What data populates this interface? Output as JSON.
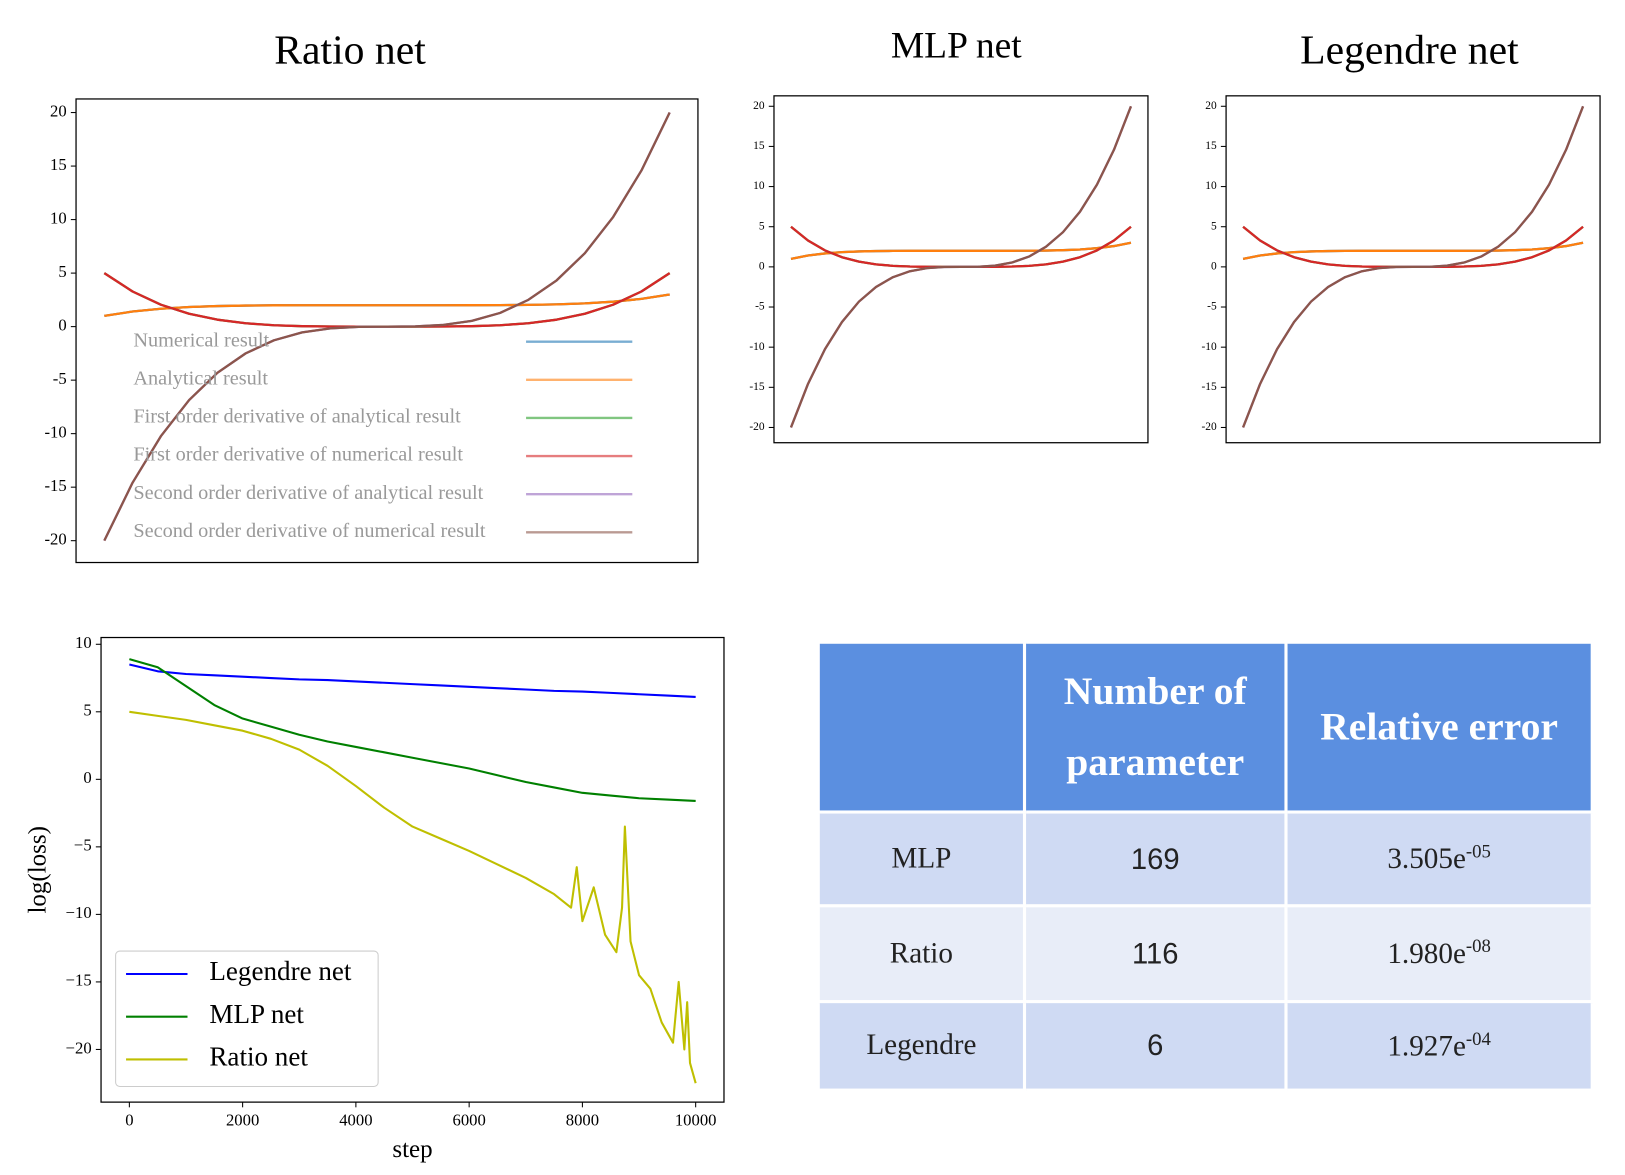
{
  "chart_data": [
    {
      "type": "line",
      "title": "Ratio net",
      "xlim": [
        -1.1,
        1.1
      ],
      "ylim": [
        -22.04,
        21.27
      ],
      "yticks": [
        -20,
        -15,
        -10,
        -5,
        0,
        5,
        10,
        15,
        20
      ],
      "grid": false,
      "legend": "lower center",
      "x": [
        -1,
        -0.9,
        -0.8,
        -0.7,
        -0.6,
        -0.5,
        -0.4,
        -0.3,
        -0.2,
        -0.1,
        0,
        0.1,
        0.2,
        0.3,
        0.4,
        0.5,
        0.6,
        0.7,
        0.8,
        0.9,
        1
      ],
      "series": [
        {
          "name": "Numerical result",
          "color": "#1f77b4",
          "values": [
            1,
            1.41,
            1.672,
            1.832,
            1.922,
            1.969,
            1.99,
            1.998,
            2,
            2,
            2,
            2,
            2,
            2.002,
            2.01,
            2.031,
            2.078,
            2.168,
            2.328,
            2.59,
            3
          ]
        },
        {
          "name": "Analytical result",
          "color": "#ff7f0e",
          "values": [
            1,
            1.41,
            1.672,
            1.832,
            1.922,
            1.969,
            1.99,
            1.998,
            2,
            2,
            2,
            2,
            2,
            2.002,
            2.01,
            2.031,
            2.078,
            2.168,
            2.328,
            2.59,
            3
          ]
        },
        {
          "name": "First order derivative of analytical result",
          "color": "#2ca02c",
          "values": [
            5,
            3.281,
            2.048,
            1.201,
            0.648,
            0.313,
            0.128,
            0.041,
            0.008,
            0.001,
            0,
            0.001,
            0.008,
            0.041,
            0.128,
            0.313,
            0.648,
            1.201,
            2.048,
            3.281,
            5
          ]
        },
        {
          "name": "First order derivative of numerical result",
          "color": "#d62728",
          "values": [
            5,
            3.281,
            2.048,
            1.201,
            0.648,
            0.313,
            0.128,
            0.041,
            0.008,
            0.001,
            0,
            0.001,
            0.008,
            0.041,
            0.128,
            0.313,
            0.648,
            1.201,
            2.048,
            3.281,
            5
          ]
        },
        {
          "name": "Second order derivative of analytical result",
          "color": "#9467bd",
          "values": [
            -20,
            -14.58,
            -10.24,
            -6.86,
            -4.32,
            -2.5,
            -1.28,
            -0.54,
            -0.16,
            -0.02,
            0,
            0.02,
            0.16,
            0.54,
            1.28,
            2.5,
            4.32,
            6.86,
            10.24,
            14.58,
            20
          ]
        },
        {
          "name": "Second order derivative of numerical result",
          "color": "#8c564b",
          "values": [
            -20,
            -14.58,
            -10.24,
            -6.86,
            -4.32,
            -2.5,
            -1.28,
            -0.54,
            -0.16,
            -0.02,
            0,
            0.02,
            0.16,
            0.54,
            1.28,
            2.5,
            4.32,
            6.86,
            10.24,
            14.58,
            20
          ]
        }
      ]
    },
    {
      "type": "line",
      "title": "MLP net",
      "xlim": [
        -1.1,
        1.1
      ],
      "ylim": [
        -21.9,
        21.3
      ],
      "yticks": [
        -20,
        -15,
        -10,
        -5,
        0,
        5,
        10,
        15,
        20
      ],
      "grid": false,
      "x": [
        -1,
        -0.9,
        -0.8,
        -0.7,
        -0.6,
        -0.5,
        -0.4,
        -0.3,
        -0.2,
        -0.1,
        0,
        0.1,
        0.2,
        0.3,
        0.4,
        0.5,
        0.6,
        0.7,
        0.8,
        0.9,
        1
      ],
      "series": [
        {
          "color": "#1f77b4",
          "values": [
            1,
            1.41,
            1.672,
            1.832,
            1.922,
            1.969,
            1.99,
            1.998,
            2,
            2,
            2,
            2,
            2,
            2.002,
            2.01,
            2.031,
            2.078,
            2.168,
            2.328,
            2.59,
            3
          ]
        },
        {
          "color": "#ff7f0e",
          "values": [
            1,
            1.41,
            1.672,
            1.832,
            1.922,
            1.969,
            1.99,
            1.998,
            2,
            2,
            2,
            2,
            2,
            2.002,
            2.01,
            2.031,
            2.078,
            2.168,
            2.328,
            2.59,
            3
          ]
        },
        {
          "color": "#2ca02c",
          "values": [
            5,
            3.281,
            2.048,
            1.201,
            0.648,
            0.313,
            0.128,
            0.041,
            0.008,
            0.001,
            0,
            0.001,
            0.008,
            0.041,
            0.128,
            0.313,
            0.648,
            1.201,
            2.048,
            3.281,
            5
          ]
        },
        {
          "color": "#d62728",
          "values": [
            5,
            3.281,
            2.048,
            1.201,
            0.648,
            0.313,
            0.128,
            0.041,
            0.008,
            0.001,
            0,
            0.001,
            0.008,
            0.041,
            0.128,
            0.313,
            0.648,
            1.201,
            2.048,
            3.281,
            5
          ]
        },
        {
          "color": "#9467bd",
          "values": [
            -20,
            -14.58,
            -10.24,
            -6.86,
            -4.32,
            -2.5,
            -1.28,
            -0.54,
            -0.16,
            -0.02,
            0,
            0.02,
            0.16,
            0.54,
            1.28,
            2.5,
            4.32,
            6.86,
            10.24,
            14.58,
            20
          ]
        },
        {
          "color": "#8c564b",
          "values": [
            -20,
            -14.58,
            -10.24,
            -6.86,
            -4.32,
            -2.5,
            -1.28,
            -0.54,
            -0.16,
            -0.02,
            0,
            0.02,
            0.16,
            0.54,
            1.28,
            2.5,
            4.32,
            6.86,
            10.24,
            14.58,
            20
          ]
        }
      ]
    },
    {
      "type": "line",
      "title": "Legendre net",
      "xlim": [
        -1.1,
        1.1
      ],
      "ylim": [
        -21.9,
        21.3
      ],
      "yticks": [
        -20,
        -15,
        -10,
        -5,
        0,
        5,
        10,
        15,
        20
      ],
      "grid": false,
      "x": [
        -1,
        -0.9,
        -0.8,
        -0.7,
        -0.6,
        -0.5,
        -0.4,
        -0.3,
        -0.2,
        -0.1,
        0,
        0.1,
        0.2,
        0.3,
        0.4,
        0.5,
        0.6,
        0.7,
        0.8,
        0.9,
        1
      ],
      "series": [
        {
          "color": "#1f77b4",
          "values": [
            1,
            1.41,
            1.672,
            1.832,
            1.922,
            1.969,
            1.99,
            1.998,
            2,
            2,
            2,
            2,
            2,
            2.002,
            2.01,
            2.031,
            2.078,
            2.168,
            2.328,
            2.59,
            3
          ]
        },
        {
          "color": "#ff7f0e",
          "values": [
            1,
            1.41,
            1.672,
            1.832,
            1.922,
            1.969,
            1.99,
            1.998,
            2,
            2,
            2,
            2,
            2,
            2.002,
            2.01,
            2.031,
            2.078,
            2.168,
            2.328,
            2.59,
            3
          ]
        },
        {
          "color": "#2ca02c",
          "values": [
            5,
            3.281,
            2.048,
            1.201,
            0.648,
            0.313,
            0.128,
            0.041,
            0.008,
            0.001,
            0,
            0.001,
            0.008,
            0.041,
            0.128,
            0.313,
            0.648,
            1.201,
            2.048,
            3.281,
            5
          ]
        },
        {
          "color": "#d62728",
          "values": [
            5,
            3.281,
            2.048,
            1.201,
            0.648,
            0.313,
            0.128,
            0.041,
            0.008,
            0.001,
            0,
            0.001,
            0.008,
            0.041,
            0.128,
            0.313,
            0.648,
            1.201,
            2.048,
            3.281,
            5
          ]
        },
        {
          "color": "#9467bd",
          "values": [
            -20,
            -14.58,
            -10.24,
            -6.86,
            -4.32,
            -2.5,
            -1.28,
            -0.54,
            -0.16,
            -0.02,
            0,
            0.02,
            0.16,
            0.54,
            1.28,
            2.5,
            4.32,
            6.86,
            10.24,
            14.58,
            20
          ]
        },
        {
          "color": "#8c564b",
          "values": [
            -20,
            -14.58,
            -10.24,
            -6.86,
            -4.32,
            -2.5,
            -1.28,
            -0.54,
            -0.16,
            -0.02,
            0,
            0.02,
            0.16,
            0.54,
            1.28,
            2.5,
            4.32,
            6.86,
            10.24,
            14.58,
            20
          ]
        }
      ]
    },
    {
      "type": "line",
      "x_label": "step",
      "y_label": "log(loss)",
      "xlim": [
        -500,
        10500
      ],
      "ylim": [
        -23.9,
        10.5
      ],
      "xticks": [
        0,
        2000,
        4000,
        6000,
        8000,
        10000
      ],
      "yticks": [
        {
          "value": -20,
          "label": "−20"
        },
        {
          "value": -15,
          "label": "−15"
        },
        {
          "value": -10,
          "label": "−10"
        },
        {
          "value": -5,
          "label": "−5"
        },
        0,
        5,
        10
      ],
      "grid": false,
      "legend": "lower left",
      "x": [
        0,
        500,
        1000,
        1500,
        2000,
        2500,
        3000,
        3500,
        4000,
        4500,
        5000,
        5500,
        6000,
        6500,
        7000,
        7500,
        8000,
        8500,
        9000,
        9500,
        10000
      ],
      "series": [
        {
          "name": "Legendre net",
          "color": "#0000ff",
          "values": [
            8.5,
            8.0,
            7.8,
            7.7,
            7.6,
            7.5,
            7.4,
            7.35,
            7.25,
            7.15,
            7.05,
            6.95,
            6.85,
            6.75,
            6.65,
            6.55,
            6.5,
            6.4,
            6.3,
            6.2,
            6.1
          ]
        },
        {
          "name": "MLP net",
          "color": "#008000",
          "values": [
            8.9,
            8.3,
            6.9,
            5.5,
            4.5,
            3.9,
            3.3,
            2.8,
            2.4,
            2.0,
            1.6,
            1.2,
            0.8,
            0.3,
            -0.2,
            -0.6,
            -1.0,
            -1.2,
            -1.4,
            -1.5,
            -1.6
          ]
        },
        {
          "name": "Ratio net",
          "color": "#bfbf00",
          "x": [
            0,
            500,
            1000,
            1500,
            2000,
            2500,
            3000,
            3500,
            4000,
            4500,
            5000,
            5500,
            6000,
            6500,
            7000,
            7500,
            7800,
            7900,
            8000,
            8200,
            8400,
            8600,
            8700,
            8750,
            8850,
            9000,
            9200,
            9400,
            9600,
            9700,
            9800,
            9850,
            9900,
            10000
          ],
          "values": [
            5.0,
            4.7,
            4.4,
            4.0,
            3.6,
            3.0,
            2.2,
            1.0,
            -0.5,
            -2.1,
            -3.5,
            -4.4,
            -5.3,
            -6.3,
            -7.3,
            -8.5,
            -9.5,
            -6.5,
            -10.5,
            -8.0,
            -11.5,
            -12.8,
            -9.5,
            -3.5,
            -12.0,
            -14.5,
            -15.5,
            -18.0,
            -19.5,
            -15.0,
            -20.0,
            -16.5,
            -21.0,
            -22.5
          ]
        }
      ]
    }
  ],
  "table": {
    "header": [
      "Number of parameter",
      "Relative error"
    ],
    "rows": [
      {
        "name": "MLP",
        "params": "169",
        "error": "3.505e",
        "exponent": "-05"
      },
      {
        "name": "Ratio",
        "params": "116",
        "error": "1.980e",
        "exponent": "-08"
      },
      {
        "name": "Legendre",
        "params": "6",
        "error": "1.927e",
        "exponent": "-04"
      }
    ]
  }
}
